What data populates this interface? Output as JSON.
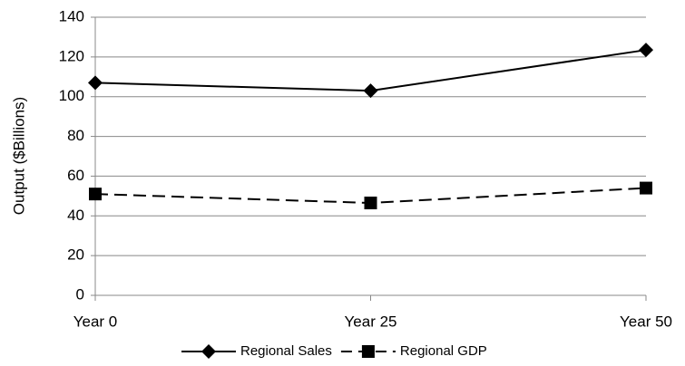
{
  "chart_data": {
    "type": "line",
    "y_label": "Output ($Billions)",
    "categories": [
      "Year 0",
      "Year 25",
      "Year 50"
    ],
    "series": [
      {
        "name": "Regional Sales",
        "color": "#000000",
        "line_style": "solid",
        "marker": "diamond",
        "values": [
          107,
          103,
          123.5
        ]
      },
      {
        "name": "Regional GDP",
        "color": "#000000",
        "line_style": "dashed",
        "marker": "square",
        "values": [
          51,
          46.5,
          54
        ]
      }
    ],
    "ylim": [
      0,
      140
    ],
    "yticks": [
      0,
      20,
      40,
      60,
      80,
      100,
      120,
      140
    ],
    "grid": true,
    "legend": "bottom"
  }
}
